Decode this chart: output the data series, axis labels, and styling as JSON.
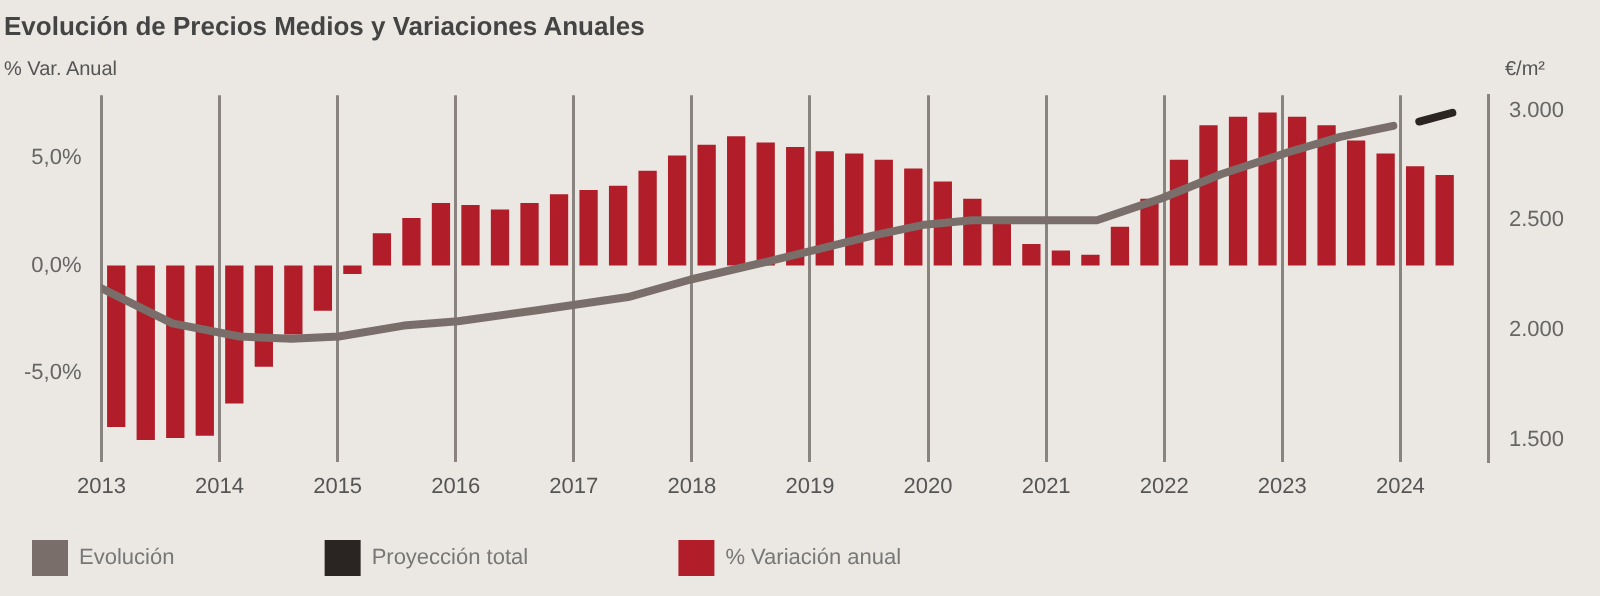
{
  "chart_data": {
    "type": "bar",
    "title": "Evolución de Precios Medios y Variaciones Anuales",
    "ylabel": "% Var. Anual",
    "y2label": "€/m²",
    "xlim": [
      2013,
      2024.75
    ],
    "xticks": [
      2013,
      2014,
      2015,
      2016,
      2017,
      2018,
      2019,
      2020,
      2021,
      2022,
      2023,
      2024
    ],
    "ylim": [
      -9.1,
      7.9
    ],
    "yticks": [
      {
        "value": -5,
        "label": "-5,0%"
      },
      {
        "value": 0,
        "label": "0,0%"
      },
      {
        "value": 5,
        "label": "5,0%"
      }
    ],
    "y2lim": [
      1400,
      3070
    ],
    "y2ticks": [
      {
        "value": 1500,
        "label": "1.500"
      },
      {
        "value": 2000,
        "label": "2.000"
      },
      {
        "value": 2500,
        "label": "2.500"
      },
      {
        "value": 3000,
        "label": "3.000"
      }
    ],
    "grid": "x",
    "legend": "bottom",
    "series": [
      {
        "name": "% Variación anual",
        "color": "#b11e2a",
        "x": [
          2013.125,
          2013.375,
          2013.625,
          2013.875,
          2014.125,
          2014.375,
          2014.625,
          2014.875,
          2015.125,
          2015.375,
          2015.625,
          2015.875,
          2016.125,
          2016.375,
          2016.625,
          2016.875,
          2017.125,
          2017.375,
          2017.625,
          2017.875,
          2018.125,
          2018.375,
          2018.625,
          2018.875,
          2019.125,
          2019.375,
          2019.625,
          2019.875,
          2020.125,
          2020.375,
          2020.625,
          2020.875,
          2021.125,
          2021.375,
          2021.625,
          2021.875,
          2022.125,
          2022.375,
          2022.625,
          2022.875,
          2023.125,
          2023.375,
          2023.625,
          2023.875,
          2024.125,
          2024.375
        ],
        "values": [
          -7.5,
          -8.1,
          -8.0,
          -7.9,
          -6.4,
          -4.7,
          -3.2,
          -2.1,
          -0.4,
          1.5,
          2.2,
          2.9,
          2.8,
          2.6,
          2.9,
          3.3,
          3.5,
          3.7,
          4.4,
          5.1,
          5.6,
          6.0,
          5.7,
          5.5,
          5.3,
          5.2,
          4.9,
          4.5,
          3.9,
          3.1,
          2.0,
          1.0,
          0.7,
          0.5,
          1.8,
          3.1,
          4.9,
          6.5,
          6.9,
          7.1,
          6.9,
          6.5,
          5.8,
          5.2,
          4.6,
          4.2
        ]
      },
      {
        "name": "Evolución",
        "type": "line",
        "axis": "y2",
        "color": "#7a6e6a",
        "x": [
          2013.0,
          2013.6,
          2014.17,
          2014.61,
          2015.01,
          2015.56,
          2016.02,
          2016.69,
          2017.46,
          2017.99,
          2018.63,
          2019.08,
          2019.53,
          2019.97,
          2020.37,
          2021.21,
          2021.43,
          2021.98,
          2022.48,
          2023.05,
          2023.49,
          2023.94
        ],
        "values": [
          2190,
          2030,
          1970,
          1960,
          1970,
          2020,
          2040,
          2090,
          2150,
          2230,
          2310,
          2370,
          2430,
          2480,
          2500,
          2500,
          2500,
          2600,
          2710,
          2810,
          2880,
          2930
        ]
      },
      {
        "name": "Proyección total",
        "type": "line",
        "axis": "y2",
        "color": "#2a2423",
        "x": [
          2024.16,
          2024.44
        ],
        "values": [
          2950,
          2990
        ]
      }
    ]
  }
}
